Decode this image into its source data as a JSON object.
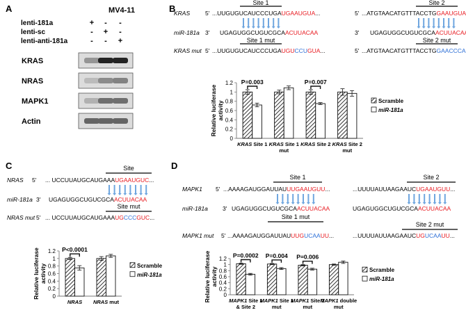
{
  "panelA": {
    "letter": "A",
    "cell_line": "MV4-11",
    "conditions": [
      {
        "label": "lenti-181a",
        "marks": [
          "+",
          "-",
          "-"
        ]
      },
      {
        "label": "lenti-sc",
        "marks": [
          "-",
          "+",
          "-"
        ]
      },
      {
        "label": "lenti-anti-181a",
        "marks": [
          "-",
          "-",
          "+"
        ]
      }
    ],
    "blots": [
      {
        "label": "KRAS",
        "intensity": [
          0.35,
          0.95,
          0.95
        ]
      },
      {
        "label": "NRAS",
        "intensity": [
          0.15,
          0.4,
          0.45
        ]
      },
      {
        "label": "MAPK1",
        "intensity": [
          0.2,
          0.55,
          0.55
        ]
      },
      {
        "label": "Actin",
        "intensity": [
          0.6,
          0.6,
          0.6
        ]
      }
    ]
  },
  "panelB": {
    "letter": "B",
    "site1_label": "Site 1",
    "site2_label": "Site 2",
    "site1mut_label": "Site 1 mut",
    "site2mut_label": "Site 2 mut",
    "row_gene": "KRAS",
    "row_mir": "miR-181a",
    "row_mut": "KRAS mut",
    "p5": "5'",
    "p3": "3'",
    "seq_wt_1a": "...UUGUGUCAUCCCUGA",
    "seq_wt_1b": "UGAAUGUA",
    "seq_wt_1c": "...",
    "seq_mir_1a": "UGAGUGGCUGUCGCA",
    "seq_mir_1b": "ACUUACAA",
    "seq_mut_1a": "...UUGUGUCAUCCCUGA",
    "seq_mut_1b": "UGU",
    "seq_mut_1c": "CCU",
    "seq_mut_1d": "GUA",
    "seq_mut_1e": "...",
    "seq_wt_2a": "...ATGTAACATGTTTACCTG",
    "seq_wt_2b": "GAAUGUA",
    "seq_mir_2a": "UGAGUGGCUGUCGCA",
    "seq_mir_2b": "ACUUACAA",
    "seq_mut_2a": "...ATGTAACATGTTTACCTG",
    "seq_mut_2b": "GAACCCA"
  },
  "chartB": {
    "ylabel": "Relative luciferase activity",
    "ylim": [
      0,
      1.2
    ],
    "ticks": [
      "0",
      "0.2",
      "0.4",
      "0.6",
      "0.8",
      "1",
      "1.2"
    ],
    "categories": [
      {
        "gene": "KRAS",
        "rest": "Site 1",
        "line2": ""
      },
      {
        "gene": "KRAS",
        "rest": "Site 1",
        "line2": "mut"
      },
      {
        "gene": "KRAS",
        "rest": "Site 2",
        "line2": ""
      },
      {
        "gene": "KRAS",
        "rest": "Site 2",
        "line2": "mut"
      }
    ],
    "series": [
      {
        "name": "Scramble",
        "values": [
          1.0,
          1.0,
          1.0,
          1.0
        ],
        "err": [
          0.05,
          0.04,
          0.05,
          0.07
        ]
      },
      {
        "name": "miR-181a",
        "values": [
          0.72,
          1.09,
          0.75,
          0.97
        ],
        "err": [
          0.04,
          0.04,
          0.02,
          0.06
        ]
      }
    ],
    "pvalues": [
      {
        "index": 0,
        "label": "P=0.003"
      },
      {
        "index": 2,
        "label": "P=0.007"
      }
    ],
    "legend": [
      "Scramble",
      "miR-181a"
    ]
  },
  "panelC": {
    "letter": "C",
    "site_label": "Site",
    "sitemut_label": "Site mut",
    "row_gene": "NRAS",
    "row_mir": "miR-181a",
    "row_mut": "NRAS mut",
    "p5": "5'",
    "p3": "3'",
    "seq_wt_a": "... UCCUUAUGCAUGAAA",
    "seq_wt_b": "UGAAUGUC",
    "seq_wt_c": "...",
    "seq_mir_a": "UGAGUGGCUGUCGCA",
    "seq_mir_b": "ACUUACAA",
    "seq_mut_a": "... UCCUUAUGCAUGAAA",
    "seq_mut_b": "UG",
    "seq_mut_c": "CCC",
    "seq_mut_d": "GUC",
    "seq_mut_e": "..."
  },
  "chartC": {
    "ylabel": "Relative luciferase activity",
    "ylim": [
      0,
      1.2
    ],
    "ticks": [
      "0",
      "0.2",
      "0.4",
      "0.6",
      "0.8",
      "1",
      "1.2"
    ],
    "categories": [
      {
        "gene": "NRAS",
        "rest": "",
        "line2": ""
      },
      {
        "gene": "NRAS",
        "rest": "mut",
        "line2": ""
      }
    ],
    "series": [
      {
        "name": "Scramble",
        "values": [
          1.0,
          1.0
        ],
        "err": [
          0.03,
          0.05
        ]
      },
      {
        "name": "miR-181a",
        "values": [
          0.75,
          1.07
        ],
        "err": [
          0.06,
          0.04
        ]
      }
    ],
    "pvalues": [
      {
        "index": 0,
        "label": "P<0.0001"
      }
    ],
    "legend": [
      "Scramble",
      "miR-181a"
    ]
  },
  "panelD": {
    "letter": "D",
    "site1_label": "Site 1",
    "site2_label": "Site 2",
    "site1mut_label": "Site 1 mut",
    "site2mut_label": "Site 2 mut",
    "row_gene": "MAPK1",
    "row_mir": "miR-181a",
    "row_mut": "MAPK1 mut",
    "p5": "5'",
    "p3": "3'",
    "seq_wt_1a": "...AAAAGAUGGAUUAU",
    "seq_wt_1b": "UUGAAUGUU",
    "seq_wt_1c": "...",
    "seq_mir_1a": "UGAGUGGCUGUCGCA",
    "seq_mir_1b": "ACUUACAA",
    "seq_mut_1a": "...AAAAGAUGGAUUAU",
    "seq_mut_1b": "UUG",
    "seq_mut_1c": "UCAA",
    "seq_mut_1d": "UU",
    "seq_mut_1e": "...",
    "seq_wt_2a": "...UUUUAUUAAGAAUC",
    "seq_wt_2b": "UGAAUGUU",
    "seq_wt_2c": "...",
    "seq_mir_2a": "UGAGUGGCUGUCGCA",
    "seq_mir_2b": "ACUUACAA",
    "seq_mut_2a": "...UUUUAUUAAGAAUC",
    "seq_mut_2b": "UG",
    "seq_mut_2c": "UCAA",
    "seq_mut_2d": "UU",
    "seq_mut_2e": "..."
  },
  "chartD": {
    "ylabel": "Relative luciferase activity",
    "ylim": [
      0,
      1.2
    ],
    "ticks": [
      "0",
      "0.2",
      "0.4",
      "0.6",
      "0.8",
      "1",
      "1.2"
    ],
    "categories": [
      {
        "gene": "MAPK1",
        "rest": "Site 1",
        "line2": "& Site 2"
      },
      {
        "gene": "MAPK1",
        "rest": "Site 1",
        "line2": "mut"
      },
      {
        "gene": "MAPK1",
        "rest": "Site 2",
        "line2": "mut"
      },
      {
        "gene": "MAPK1",
        "rest": "double",
        "line2": "mut"
      }
    ],
    "series": [
      {
        "name": "Scramble",
        "values": [
          1.03,
          1.02,
          0.98,
          1.0
        ],
        "err": [
          0.02,
          0.02,
          0.02,
          0.02
        ]
      },
      {
        "name": "miR-181a",
        "values": [
          0.68,
          0.87,
          0.85,
          1.08
        ],
        "err": [
          0.03,
          0.03,
          0.03,
          0.04
        ]
      }
    ],
    "pvalues": [
      {
        "index": 0,
        "label": "P=0.0002"
      },
      {
        "index": 1,
        "label": "P=0.004"
      },
      {
        "index": 2,
        "label": "P=0.006"
      }
    ],
    "legend": [
      "Scramble",
      "miR-181a"
    ]
  },
  "colors": {
    "red": "#e8191f",
    "blue": "#2d6fd6",
    "arrow": "#6fa6df",
    "text": "#222222"
  }
}
